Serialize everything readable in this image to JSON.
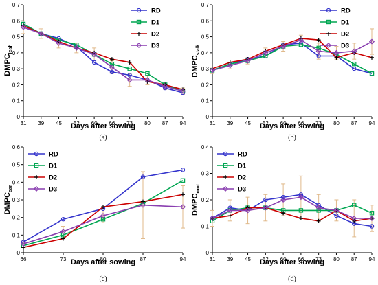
{
  "colors": {
    "RD": "#3333cc",
    "D1": "#00a651",
    "D2": "#cc0000",
    "D3": "#8a3fb0",
    "error_bar": "#e0b98a"
  },
  "chart_data": [
    {
      "type": "line",
      "panel_label": "(a)",
      "xlabel": "Days after sowing",
      "ylabel_main": "DMPC",
      "ylabel_sub": "leaf",
      "categories": [
        "31",
        "39",
        "45",
        "52",
        "60",
        "66",
        "73",
        "80",
        "87",
        "94"
      ],
      "ylim": [
        0,
        0.7
      ],
      "yticks": [
        "0",
        "0.1",
        "0.2",
        "0.3",
        "0.4",
        "0.5",
        "0.6",
        "0.7"
      ],
      "legend": "top-right",
      "series": [
        {
          "name": "RD",
          "values": [
            0.58,
            0.52,
            0.49,
            0.44,
            0.34,
            0.28,
            0.26,
            0.23,
            0.18,
            0.15
          ]
        },
        {
          "name": "D1",
          "values": [
            0.58,
            0.52,
            0.48,
            0.45,
            0.39,
            0.33,
            0.3,
            0.27,
            0.2,
            0.16
          ]
        },
        {
          "name": "D2",
          "values": [
            0.57,
            0.52,
            0.47,
            0.43,
            0.4,
            0.36,
            0.34,
            0.22,
            0.2,
            0.17
          ]
        },
        {
          "name": "D3",
          "values": [
            0.56,
            0.52,
            0.46,
            0.43,
            0.39,
            0.31,
            0.23,
            0.23,
            0.19,
            0.16
          ]
        }
      ],
      "error": [
        0.04,
        0.03,
        0.03,
        0.03,
        0.04,
        0.04,
        0.04,
        0.03,
        0.02,
        0.02
      ]
    },
    {
      "type": "line",
      "panel_label": "(b)",
      "xlabel": "Days after sowing",
      "ylabel_main": "DMPC",
      "ylabel_sub": "stalk",
      "categories": [
        "31",
        "39",
        "45",
        "52",
        "60",
        "66",
        "73",
        "80",
        "87",
        "94"
      ],
      "ylim": [
        0,
        0.7
      ],
      "yticks": [
        "0",
        "0.1",
        "0.2",
        "0.3",
        "0.4",
        "0.5",
        "0.6",
        "0.7"
      ],
      "legend": "top-right",
      "series": [
        {
          "name": "RD",
          "values": [
            0.29,
            0.33,
            0.36,
            0.38,
            0.45,
            0.46,
            0.38,
            0.38,
            0.3,
            0.27
          ]
        },
        {
          "name": "D1",
          "values": [
            0.29,
            0.33,
            0.35,
            0.38,
            0.44,
            0.45,
            0.43,
            0.39,
            0.33,
            0.27
          ]
        },
        {
          "name": "D2",
          "values": [
            0.3,
            0.34,
            0.36,
            0.41,
            0.45,
            0.49,
            0.48,
            0.37,
            0.4,
            0.37
          ]
        },
        {
          "name": "D3",
          "values": [
            0.29,
            0.32,
            0.35,
            0.4,
            0.44,
            0.48,
            0.41,
            0.4,
            0.41,
            0.47
          ]
        }
      ],
      "error": [
        0.02,
        0.02,
        0.02,
        0.03,
        0.03,
        0.03,
        0.05,
        0.04,
        0.05,
        0.08
      ]
    },
    {
      "type": "line",
      "panel_label": "(c)",
      "xlabel": "Days after sowing",
      "ylabel_main": "DMPC",
      "ylabel_sub": "ear",
      "categories": [
        "66",
        "73",
        "80",
        "87",
        "94"
      ],
      "ylim": [
        0,
        0.6
      ],
      "yticks": [
        "0",
        "0.1",
        "0.2",
        "0.3",
        "0.4",
        "0.5",
        "0.6"
      ],
      "legend": "top-left",
      "series": [
        {
          "name": "RD",
          "values": [
            0.06,
            0.19,
            0.25,
            0.43,
            0.47
          ]
        },
        {
          "name": "D1",
          "values": [
            0.04,
            0.1,
            0.19,
            0.28,
            0.41
          ]
        },
        {
          "name": "D2",
          "values": [
            0.03,
            0.08,
            0.26,
            0.29,
            0.33
          ]
        },
        {
          "name": "D3",
          "values": [
            0.05,
            0.12,
            0.21,
            0.27,
            0.26
          ]
        }
      ],
      "error": [
        0.02,
        0.03,
        0.04,
        0.19,
        0.12
      ]
    },
    {
      "type": "line",
      "panel_label": "(d)",
      "xlabel": "Days after sowing",
      "ylabel_main": "DMPC",
      "ylabel_sub": "root",
      "categories": [
        "31",
        "39",
        "45",
        "52",
        "60",
        "66",
        "73",
        "80",
        "87",
        "94"
      ],
      "ylim": [
        0,
        0.4
      ],
      "yticks": [
        "0",
        "0.1",
        "0.2",
        "0.3",
        "0.4"
      ],
      "legend": "top-left",
      "series": [
        {
          "name": "RD",
          "values": [
            0.13,
            0.17,
            0.16,
            0.2,
            0.21,
            0.22,
            0.18,
            0.14,
            0.11,
            0.1
          ]
        },
        {
          "name": "D1",
          "values": [
            0.12,
            0.16,
            0.17,
            0.17,
            0.16,
            0.16,
            0.16,
            0.16,
            0.18,
            0.15
          ]
        },
        {
          "name": "D2",
          "values": [
            0.13,
            0.14,
            0.17,
            0.17,
            0.15,
            0.13,
            0.12,
            0.16,
            0.12,
            0.13
          ]
        },
        {
          "name": "D3",
          "values": [
            0.13,
            0.16,
            0.16,
            0.17,
            0.2,
            0.21,
            0.17,
            0.16,
            0.13,
            0.13
          ]
        }
      ],
      "error": [
        0.03,
        0.04,
        0.05,
        0.05,
        0.06,
        0.08,
        0.05,
        0.04,
        0.07,
        0.05
      ]
    }
  ]
}
